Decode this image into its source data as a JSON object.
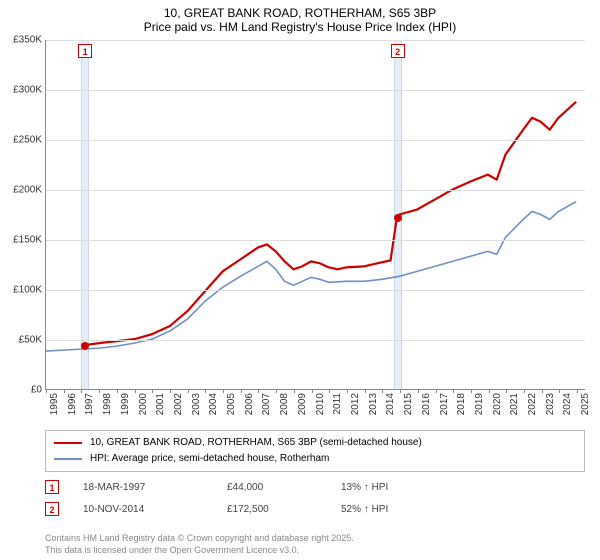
{
  "title": {
    "line1": "10, GREAT BANK ROAD, ROTHERHAM, S65 3BP",
    "line2": "Price paid vs. HM Land Registry's House Price Index (HPI)"
  },
  "chart": {
    "type": "line",
    "background_color": "#ffffff",
    "grid_color": "#dddddd",
    "axis_color": "#888888",
    "label_fontsize": 10,
    "title_fontsize": 12,
    "x_years": [
      1995,
      1996,
      1997,
      1998,
      1999,
      2000,
      2001,
      2002,
      2003,
      2004,
      2005,
      2006,
      2007,
      2008,
      2009,
      2010,
      2011,
      2012,
      2013,
      2014,
      2015,
      2016,
      2017,
      2018,
      2019,
      2020,
      2021,
      2022,
      2023,
      2024,
      2025
    ],
    "x_min": 1995,
    "x_max": 2025.5,
    "y_min": 0,
    "y_max": 350000,
    "y_ticks": [
      0,
      50000,
      100000,
      150000,
      200000,
      250000,
      300000,
      350000
    ],
    "y_tick_labels": [
      "£0",
      "£50K",
      "£100K",
      "£150K",
      "£200K",
      "£250K",
      "£300K",
      "£350K"
    ],
    "marker_band_color": "#e6eef8",
    "series": [
      {
        "id": "price_paid",
        "label": "10, GREAT BANK ROAD, ROTHERHAM, S65 3BP (semi-detached house)",
        "color": "#cc0000",
        "width": 2.2,
        "points": [
          [
            1997.21,
            44000
          ],
          [
            1998,
            46000
          ],
          [
            1999,
            48000
          ],
          [
            2000,
            50000
          ],
          [
            2001,
            55000
          ],
          [
            2002,
            63000
          ],
          [
            2003,
            78000
          ],
          [
            2004,
            98000
          ],
          [
            2005,
            118000
          ],
          [
            2006,
            130000
          ],
          [
            2007,
            142000
          ],
          [
            2007.5,
            145000
          ],
          [
            2008,
            138000
          ],
          [
            2008.5,
            128000
          ],
          [
            2009,
            120000
          ],
          [
            2009.5,
            123000
          ],
          [
            2010,
            128000
          ],
          [
            2010.5,
            126000
          ],
          [
            2011,
            122000
          ],
          [
            2011.5,
            120000
          ],
          [
            2012,
            122000
          ],
          [
            2013,
            123000
          ],
          [
            2013.5,
            125000
          ],
          [
            2014,
            127000
          ],
          [
            2014.5,
            129000
          ],
          [
            2014.86,
            172500
          ],
          [
            2015,
            175000
          ],
          [
            2016,
            180000
          ],
          [
            2017,
            190000
          ],
          [
            2018,
            200000
          ],
          [
            2019,
            208000
          ],
          [
            2020,
            215000
          ],
          [
            2020.5,
            210000
          ],
          [
            2021,
            235000
          ],
          [
            2022,
            260000
          ],
          [
            2022.5,
            272000
          ],
          [
            2023,
            268000
          ],
          [
            2023.5,
            260000
          ],
          [
            2024,
            272000
          ],
          [
            2025,
            288000
          ]
        ]
      },
      {
        "id": "hpi",
        "label": "HPI: Average price, semi-detached house, Rotherham",
        "color": "#6f8fc6",
        "width": 1.6,
        "points": [
          [
            1995,
            38000
          ],
          [
            1996,
            39000
          ],
          [
            1997,
            40000
          ],
          [
            1998,
            41000
          ],
          [
            1999,
            43000
          ],
          [
            2000,
            46000
          ],
          [
            2001,
            50000
          ],
          [
            2002,
            58000
          ],
          [
            2003,
            70000
          ],
          [
            2004,
            88000
          ],
          [
            2005,
            102000
          ],
          [
            2006,
            113000
          ],
          [
            2007,
            123000
          ],
          [
            2007.5,
            128000
          ],
          [
            2008,
            120000
          ],
          [
            2008.5,
            108000
          ],
          [
            2009,
            104000
          ],
          [
            2009.5,
            108000
          ],
          [
            2010,
            112000
          ],
          [
            2010.5,
            110000
          ],
          [
            2011,
            107000
          ],
          [
            2012,
            108000
          ],
          [
            2013,
            108000
          ],
          [
            2014,
            110000
          ],
          [
            2015,
            113000
          ],
          [
            2016,
            118000
          ],
          [
            2017,
            123000
          ],
          [
            2018,
            128000
          ],
          [
            2019,
            133000
          ],
          [
            2020,
            138000
          ],
          [
            2020.5,
            135000
          ],
          [
            2021,
            152000
          ],
          [
            2022,
            170000
          ],
          [
            2022.5,
            178000
          ],
          [
            2023,
            175000
          ],
          [
            2023.5,
            170000
          ],
          [
            2024,
            178000
          ],
          [
            2025,
            188000
          ]
        ]
      }
    ],
    "sale_markers": [
      {
        "n": "1",
        "year": 1997.21,
        "price": 44000,
        "color": "#cc0000"
      },
      {
        "n": "2",
        "year": 2014.86,
        "price": 172500,
        "color": "#cc0000"
      }
    ]
  },
  "legend": {
    "rows": [
      {
        "color": "#cc0000",
        "width": 2.2,
        "label": "10, GREAT BANK ROAD, ROTHERHAM, S65 3BP (semi-detached house)"
      },
      {
        "color": "#6f8fc6",
        "width": 1.6,
        "label": "HPI: Average price, semi-detached house, Rotherham"
      }
    ]
  },
  "sales_table": {
    "rows": [
      {
        "n": "1",
        "color": "#cc0000",
        "date": "18-MAR-1997",
        "price": "£44,000",
        "pct": "13% ↑ HPI"
      },
      {
        "n": "2",
        "color": "#cc0000",
        "date": "10-NOV-2014",
        "price": "£172,500",
        "pct": "52% ↑ HPI"
      }
    ]
  },
  "attribution": {
    "line1": "Contains HM Land Registry data © Crown copyright and database right 2025.",
    "line2": "This data is licensed under the Open Government Licence v3.0."
  }
}
